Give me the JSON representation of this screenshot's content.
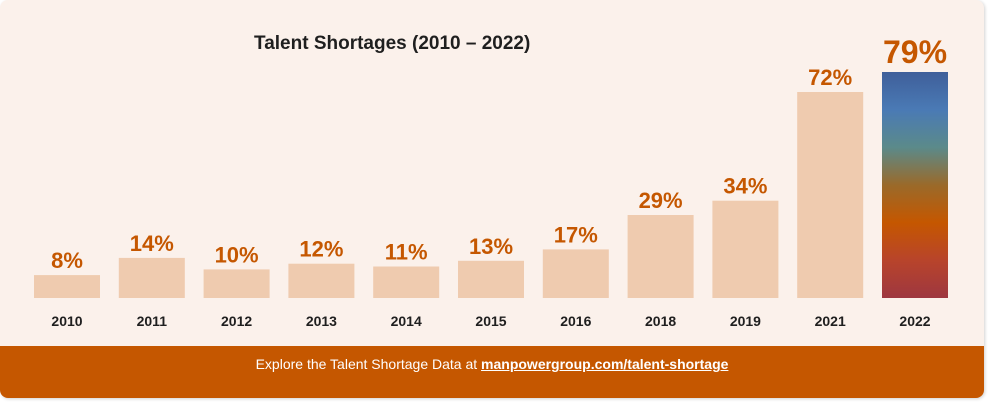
{
  "chart_data": {
    "type": "bar",
    "title": "Talent Shortages (2010 – 2022)",
    "xlabel": "",
    "ylabel": "",
    "categories": [
      "2010",
      "2011",
      "2012",
      "2013",
      "2014",
      "2015",
      "2016",
      "2018",
      "2019",
      "2021",
      "2022"
    ],
    "values": [
      8,
      14,
      10,
      12,
      11,
      13,
      17,
      29,
      34,
      72,
      79
    ],
    "data_labels": [
      "8%",
      "14%",
      "10%",
      "12%",
      "11%",
      "13%",
      "17%",
      "29%",
      "34%",
      "72%",
      "79%"
    ],
    "ylim": [
      0,
      79
    ],
    "grid": false,
    "legend": "none",
    "highlight_index": 10
  },
  "colors": {
    "background": "#fbf1eb",
    "bar": "#efcbaf",
    "label": "#c55700",
    "footer": "#c55700",
    "highlight_gradient": [
      "#3f5f9a",
      "#4a7ab5",
      "#5b8a8a",
      "#9a6a2a",
      "#c55700",
      "#b8442b",
      "#9e3740"
    ]
  },
  "footer": {
    "text": "Explore the Talent Shortage Data at ",
    "link": "manpowergroup.com/talent-shortage"
  }
}
